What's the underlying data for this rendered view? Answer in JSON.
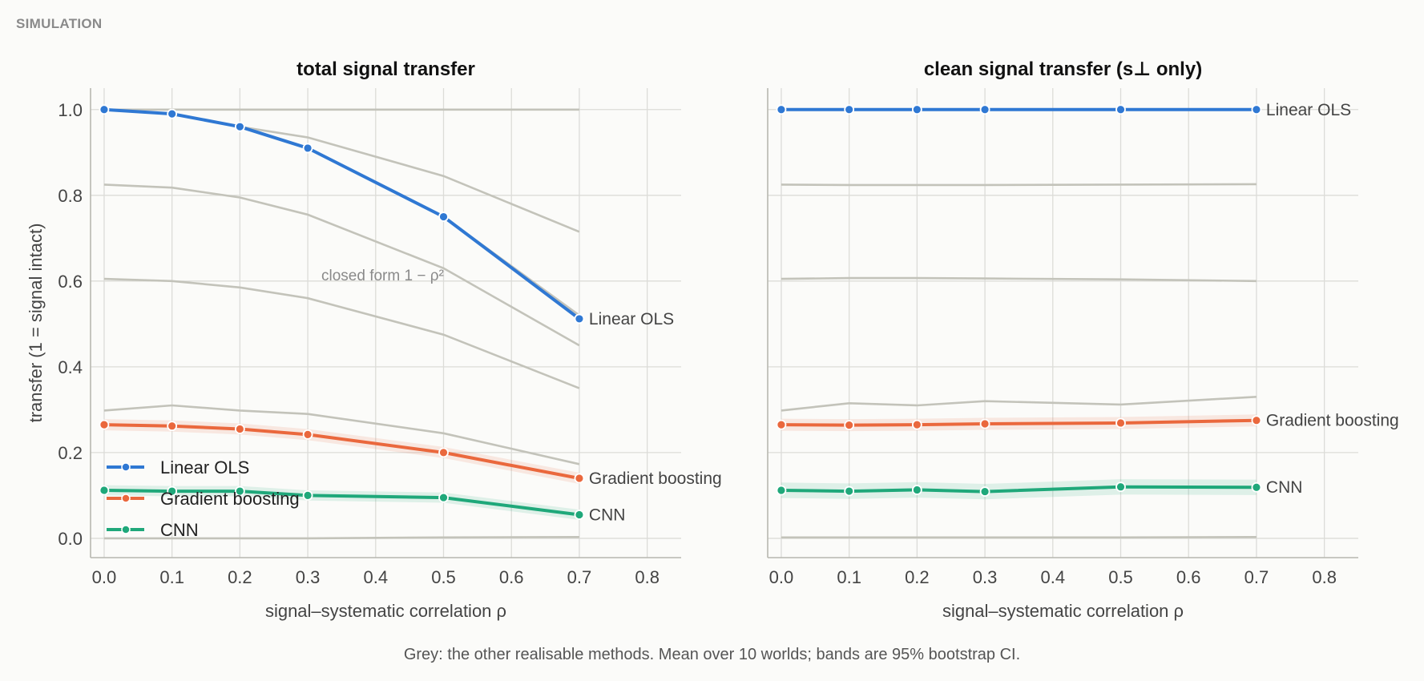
{
  "header": {
    "tag": "SIMULATION"
  },
  "caption": "Grey: the other realisable methods. Mean over 10 worlds; bands are 95% bootstrap CI.",
  "colors": {
    "linear_ols": "#2f78d3",
    "gradient_boosting": "#ea683d",
    "cnn": "#1fa87a",
    "grey": "#c3c3ba",
    "grid": "#dcdcd8",
    "axis": "#b8b8b0"
  },
  "chart_data": [
    {
      "type": "line",
      "title": "total signal transfer",
      "xlabel": "signal–systematic correlation ρ",
      "ylabel": "transfer (1 = signal intact)",
      "xlim": [
        -0.02,
        0.85
      ],
      "ylim": [
        -0.045,
        1.05
      ],
      "xticks": [
        "0.0",
        "0.1",
        "0.2",
        "0.3",
        "0.4",
        "0.5",
        "0.6",
        "0.7",
        "0.8"
      ],
      "yticks": [
        "0.0",
        "0.2",
        "0.4",
        "0.6",
        "0.8",
        "1.0"
      ],
      "grid": true,
      "legend": "bottom-left",
      "annotation": "closed form 1 − ρ²",
      "x": [
        0.0,
        0.1,
        0.2,
        0.3,
        0.5,
        0.7
      ],
      "grey_series": [
        [
          1.0,
          1.0,
          1.0,
          1.0,
          1.0,
          1.0
        ],
        [
          1.0,
          0.99,
          0.96,
          0.935,
          0.845,
          0.715
        ],
        [
          1.0,
          0.99,
          0.96,
          0.91,
          0.75,
          0.52
        ],
        [
          0.825,
          0.818,
          0.795,
          0.755,
          0.63,
          0.45
        ],
        [
          0.605,
          0.6,
          0.585,
          0.56,
          0.475,
          0.35
        ],
        [
          0.298,
          0.31,
          0.298,
          0.29,
          0.245,
          0.173
        ],
        [
          0.0,
          0.0,
          0.0,
          0.0,
          0.002,
          0.003
        ]
      ],
      "series": [
        {
          "name": "Linear OLS",
          "color": "#2f78d3",
          "values": [
            1.0,
            0.99,
            0.96,
            0.91,
            0.75,
            0.512
          ],
          "ci": 0.0
        },
        {
          "name": "Gradient boosting",
          "color": "#ea683d",
          "values": [
            0.265,
            0.262,
            0.255,
            0.242,
            0.2,
            0.14
          ],
          "ci": 0.013
        },
        {
          "name": "CNN",
          "color": "#1fa87a",
          "values": [
            0.112,
            0.11,
            0.11,
            0.1,
            0.095,
            0.055
          ],
          "ci": 0.012
        }
      ]
    },
    {
      "type": "line",
      "title": "clean signal transfer (s⊥ only)",
      "xlabel": "signal–systematic correlation ρ",
      "ylabel": "",
      "xlim": [
        -0.02,
        0.85
      ],
      "ylim": [
        -0.045,
        1.05
      ],
      "xticks": [
        "0.0",
        "0.1",
        "0.2",
        "0.3",
        "0.4",
        "0.5",
        "0.6",
        "0.7",
        "0.8"
      ],
      "yticks": [],
      "grid": true,
      "x": [
        0.0,
        0.1,
        0.2,
        0.3,
        0.5,
        0.7
      ],
      "grey_series": [
        [
          0.825,
          0.824,
          0.824,
          0.824,
          0.825,
          0.826
        ],
        [
          0.605,
          0.607,
          0.607,
          0.606,
          0.604,
          0.6
        ],
        [
          0.298,
          0.315,
          0.31,
          0.32,
          0.312,
          0.33
        ],
        [
          0.002,
          0.002,
          0.002,
          0.002,
          0.002,
          0.003
        ]
      ],
      "series": [
        {
          "name": "Linear OLS",
          "color": "#2f78d3",
          "values": [
            1.0,
            1.0,
            1.0,
            1.0,
            1.0,
            1.0
          ],
          "ci": 0.0
        },
        {
          "name": "Gradient boosting",
          "color": "#ea683d",
          "values": [
            0.265,
            0.264,
            0.265,
            0.267,
            0.269,
            0.275
          ],
          "ci": 0.014
        },
        {
          "name": "CNN",
          "color": "#1fa87a",
          "values": [
            0.112,
            0.11,
            0.113,
            0.109,
            0.12,
            0.119
          ],
          "ci": 0.018
        }
      ]
    }
  ]
}
